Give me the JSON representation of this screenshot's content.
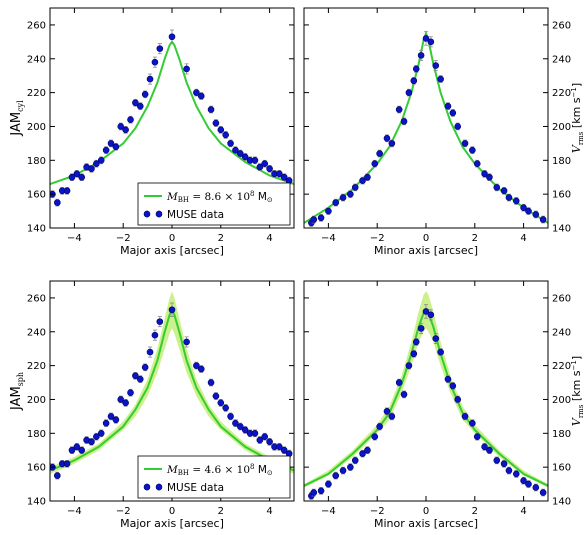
{
  "colors": {
    "model": "#33cc33",
    "model_band": "#c6ef7f",
    "data": "#0a14c8",
    "data_edge": "#000066",
    "errorbar": "#888888",
    "frame": "#000000"
  },
  "chart_data": [
    {
      "type": "line",
      "row_label": "JAM",
      "row_label_sub": "cyl",
      "xlabel": "Major axis [arcsec]",
      "ylabel": "",
      "xlim": [
        -5,
        5
      ],
      "ylim": [
        140,
        270
      ],
      "xticks": [
        -4,
        -2,
        0,
        2,
        4
      ],
      "yticks": [
        140,
        160,
        180,
        200,
        220,
        240,
        260
      ],
      "y_ticks_side": "left",
      "grid": false,
      "legend": {
        "placement": "lower-right",
        "model_label": "M_BH = 8.6 × 10^8 M☉",
        "model_math": "M",
        "model_math_sub": "BH",
        "model_eq": " = 8.6 × 10",
        "model_exp": "8",
        "model_unit": " M",
        "model_sun": "⊙",
        "data_label": "MUSE data"
      },
      "band": null,
      "series": [
        {
          "name": "MUSE data",
          "kind": "errorbar-scatter",
          "x": [
            -4.9,
            -4.7,
            -4.5,
            -4.3,
            -4.1,
            -3.9,
            -3.7,
            -3.5,
            -3.3,
            -3.1,
            -2.9,
            -2.7,
            -2.5,
            -2.3,
            -2.1,
            -1.9,
            -1.7,
            -1.5,
            -1.3,
            -1.1,
            -0.9,
            -0.7,
            -0.5,
            0.0,
            0.6,
            1.0,
            1.2,
            1.6,
            1.8,
            2.0,
            2.2,
            2.4,
            2.6,
            2.8,
            3.0,
            3.2,
            3.4,
            3.6,
            3.8,
            4.0,
            4.2,
            4.4,
            4.6,
            4.8
          ],
          "y": [
            160,
            155,
            162,
            162,
            170,
            172,
            170,
            176,
            175,
            178,
            180,
            186,
            190,
            188,
            200,
            198,
            204,
            214,
            212,
            219,
            228,
            238,
            246,
            253,
            234,
            220,
            218,
            210,
            202,
            198,
            195,
            190,
            186,
            184,
            182,
            180,
            180,
            176,
            178,
            175,
            172,
            172,
            170,
            168
          ],
          "yerr": [
            2,
            2,
            2,
            2,
            2,
            2,
            2,
            2,
            2,
            2,
            2,
            2,
            2,
            2,
            2,
            2,
            2,
            2,
            2,
            2,
            3,
            3,
            3,
            4,
            3,
            2,
            2,
            2,
            2,
            2,
            2,
            2,
            2,
            2,
            2,
            2,
            2,
            2,
            2,
            2,
            2,
            2,
            2,
            2
          ]
        },
        {
          "name": "M_BH = 8.6 × 10^8 M☉",
          "kind": "line",
          "x": [
            -5,
            -4,
            -3,
            -2,
            -1.5,
            -1,
            -0.6,
            -0.3,
            -0.1,
            0,
            0.1,
            0.3,
            0.6,
            1,
            1.5,
            2,
            3,
            4,
            5
          ],
          "y": [
            166,
            171,
            179,
            190,
            199,
            212,
            226,
            240,
            248,
            250,
            248,
            240,
            226,
            212,
            199,
            190,
            179,
            171,
            166
          ]
        }
      ]
    },
    {
      "type": "line",
      "row_label": "",
      "row_label_sub": "",
      "xlabel": "Minor axis [arcsec]",
      "ylabel": "V_rms [km s^-1]",
      "ylabel_v": "V",
      "ylabel_sub": "rms",
      "ylabel_unit": " [km s",
      "ylabel_exp": "−1",
      "ylabel_close": "]",
      "xlim": [
        -5,
        5
      ],
      "ylim": [
        140,
        270
      ],
      "xticks": [
        -4,
        -2,
        0,
        2,
        4
      ],
      "yticks": [
        140,
        160,
        180,
        200,
        220,
        240,
        260
      ],
      "y_ticks_side": "right",
      "grid": false,
      "legend": null,
      "band": null,
      "series": [
        {
          "name": "MUSE data",
          "kind": "errorbar-scatter",
          "x": [
            -4.7,
            -4.6,
            -4.3,
            -4.0,
            -3.7,
            -3.4,
            -3.1,
            -2.9,
            -2.6,
            -2.4,
            -2.1,
            -1.9,
            -1.6,
            -1.4,
            -1.1,
            -0.9,
            -0.7,
            -0.5,
            -0.4,
            -0.2,
            0.0,
            0.2,
            0.4,
            0.6,
            0.9,
            1.1,
            1.3,
            1.6,
            1.9,
            2.1,
            2.4,
            2.6,
            2.9,
            3.2,
            3.4,
            3.7,
            4.0,
            4.2,
            4.5,
            4.8
          ],
          "y": [
            143,
            145,
            146,
            150,
            155,
            158,
            160,
            164,
            168,
            170,
            178,
            184,
            193,
            190,
            210,
            203,
            220,
            227,
            234,
            242,
            252,
            250,
            236,
            228,
            212,
            208,
            200,
            190,
            186,
            178,
            172,
            170,
            164,
            162,
            158,
            156,
            152,
            150,
            148,
            145
          ],
          "yerr": [
            2,
            2,
            2,
            2,
            2,
            2,
            2,
            2,
            2,
            2,
            2,
            2,
            2,
            2,
            2,
            2,
            2,
            2,
            2,
            3,
            4,
            3,
            3,
            2,
            2,
            2,
            2,
            2,
            2,
            2,
            2,
            2,
            2,
            2,
            2,
            2,
            2,
            2,
            2,
            2
          ]
        },
        {
          "name": "M_BH = 8.6 × 10^8 M☉",
          "kind": "line",
          "x": [
            -5,
            -4,
            -3,
            -2,
            -1.5,
            -1,
            -0.6,
            -0.3,
            -0.1,
            0,
            0.1,
            0.3,
            0.6,
            1,
            1.5,
            2,
            3,
            4,
            5
          ],
          "y": [
            143,
            152,
            163,
            178,
            188,
            203,
            220,
            237,
            251,
            255,
            251,
            237,
            220,
            203,
            188,
            178,
            163,
            152,
            143
          ]
        }
      ]
    },
    {
      "type": "line",
      "row_label": "JAM",
      "row_label_sub": "sph",
      "xlabel": "Major axis [arcsec]",
      "ylabel": "",
      "xlim": [
        -5,
        5
      ],
      "ylim": [
        140,
        270
      ],
      "xticks": [
        -4,
        -2,
        0,
        2,
        4
      ],
      "yticks": [
        140,
        160,
        180,
        200,
        220,
        240,
        260
      ],
      "y_ticks_side": "left",
      "grid": false,
      "legend": {
        "placement": "lower-right",
        "model_label": "M_BH = 4.6 × 10^8 M☉",
        "model_math": "M",
        "model_math_sub": "BH",
        "model_eq": " = 4.6 × 10",
        "model_exp": "8",
        "model_unit": " M",
        "model_sun": "⊙",
        "data_label": "MUSE data"
      },
      "band": {
        "x": [
          -5,
          -4,
          -3,
          -2,
          -1.5,
          -1,
          -0.6,
          -0.3,
          -0.1,
          0,
          0.1,
          0.3,
          0.6,
          1,
          1.5,
          2,
          3,
          4,
          5
        ],
        "upper": [
          160,
          166,
          174,
          187,
          197,
          212,
          230,
          248,
          260,
          264,
          260,
          248,
          230,
          212,
          197,
          187,
          174,
          166,
          160
        ],
        "lower": [
          156,
          162,
          170,
          182,
          190,
          202,
          216,
          230,
          239,
          242,
          239,
          230,
          216,
          202,
          190,
          182,
          170,
          162,
          156
        ]
      },
      "series": [
        {
          "name": "MUSE data",
          "kind": "errorbar-scatter",
          "x": [
            -4.9,
            -4.7,
            -4.5,
            -4.3,
            -4.1,
            -3.9,
            -3.7,
            -3.5,
            -3.3,
            -3.1,
            -2.9,
            -2.7,
            -2.5,
            -2.3,
            -2.1,
            -1.9,
            -1.7,
            -1.5,
            -1.3,
            -1.1,
            -0.9,
            -0.7,
            -0.5,
            0.0,
            0.6,
            1.0,
            1.2,
            1.6,
            1.8,
            2.0,
            2.2,
            2.4,
            2.6,
            2.8,
            3.0,
            3.2,
            3.4,
            3.6,
            3.8,
            4.0,
            4.2,
            4.4,
            4.6,
            4.8
          ],
          "y": [
            160,
            155,
            162,
            162,
            170,
            172,
            170,
            176,
            175,
            178,
            180,
            186,
            190,
            188,
            200,
            198,
            204,
            214,
            212,
            219,
            228,
            238,
            246,
            253,
            234,
            220,
            218,
            210,
            202,
            198,
            195,
            190,
            186,
            184,
            182,
            180,
            180,
            176,
            178,
            175,
            172,
            172,
            170,
            168
          ],
          "yerr": [
            2,
            2,
            2,
            2,
            2,
            2,
            2,
            2,
            2,
            2,
            2,
            2,
            2,
            2,
            2,
            2,
            2,
            2,
            2,
            2,
            3,
            3,
            3,
            4,
            3,
            2,
            2,
            2,
            2,
            2,
            2,
            2,
            2,
            2,
            2,
            2,
            2,
            2,
            2,
            2,
            2,
            2,
            2,
            2
          ]
        },
        {
          "name": "M_BH = 4.6 × 10^8 M☉",
          "kind": "line",
          "x": [
            -5,
            -4,
            -3,
            -2,
            -1.5,
            -1,
            -0.6,
            -0.3,
            -0.1,
            0,
            0.1,
            0.3,
            0.6,
            1,
            1.5,
            2,
            3,
            4,
            5
          ],
          "y": [
            158,
            164,
            172,
            184,
            194,
            207,
            223,
            240,
            250,
            253,
            250,
            240,
            223,
            207,
            194,
            184,
            172,
            164,
            158
          ]
        }
      ]
    },
    {
      "type": "line",
      "row_label": "",
      "row_label_sub": "",
      "xlabel": "Minor axis [arcsec]",
      "ylabel": "V_rms [km s^-1]",
      "ylabel_v": "V",
      "ylabel_sub": "rms",
      "ylabel_unit": " [km s",
      "ylabel_exp": "−1",
      "ylabel_close": "]",
      "xlim": [
        -5,
        5
      ],
      "ylim": [
        140,
        270
      ],
      "xticks": [
        -4,
        -2,
        0,
        2,
        4
      ],
      "yticks": [
        140,
        160,
        180,
        200,
        220,
        240,
        260
      ],
      "y_ticks_side": "right",
      "grid": false,
      "legend": null,
      "band": {
        "x": [
          -5,
          -4,
          -3,
          -2,
          -1.5,
          -1,
          -0.6,
          -0.3,
          -0.1,
          0,
          0.1,
          0.3,
          0.6,
          1,
          1.5,
          2,
          3,
          4,
          5
        ],
        "upper": [
          150,
          158,
          170,
          185,
          196,
          214,
          234,
          252,
          262,
          264,
          262,
          252,
          234,
          214,
          196,
          185,
          170,
          158,
          150
        ],
        "lower": [
          148,
          155,
          166,
          180,
          188,
          204,
          220,
          234,
          240,
          242,
          240,
          234,
          220,
          204,
          188,
          180,
          166,
          155,
          148
        ]
      },
      "series": [
        {
          "name": "MUSE data",
          "kind": "errorbar-scatter",
          "x": [
            -4.7,
            -4.6,
            -4.3,
            -4.0,
            -3.7,
            -3.4,
            -3.1,
            -2.9,
            -2.6,
            -2.4,
            -2.1,
            -1.9,
            -1.6,
            -1.4,
            -1.1,
            -0.9,
            -0.7,
            -0.5,
            -0.4,
            -0.2,
            0.0,
            0.2,
            0.4,
            0.6,
            0.9,
            1.1,
            1.3,
            1.6,
            1.9,
            2.1,
            2.4,
            2.6,
            2.9,
            3.2,
            3.4,
            3.7,
            4.0,
            4.2,
            4.5,
            4.8
          ],
          "y": [
            143,
            145,
            146,
            150,
            155,
            158,
            160,
            164,
            168,
            170,
            178,
            184,
            193,
            190,
            210,
            203,
            220,
            227,
            234,
            242,
            252,
            250,
            236,
            228,
            212,
            208,
            200,
            190,
            186,
            178,
            172,
            170,
            164,
            162,
            158,
            156,
            152,
            150,
            148,
            145
          ],
          "yerr": [
            2,
            2,
            2,
            2,
            2,
            2,
            2,
            2,
            2,
            2,
            2,
            2,
            2,
            2,
            2,
            2,
            2,
            2,
            2,
            3,
            4,
            3,
            3,
            2,
            2,
            2,
            2,
            2,
            2,
            2,
            2,
            2,
            2,
            2,
            2,
            2,
            2,
            2,
            2,
            2
          ]
        },
        {
          "name": "M_BH = 4.6 × 10^8 M☉",
          "kind": "line",
          "x": [
            -5,
            -4,
            -3,
            -2,
            -1.5,
            -1,
            -0.6,
            -0.3,
            -0.1,
            0,
            0.1,
            0.3,
            0.6,
            1,
            1.5,
            2,
            3,
            4,
            5
          ],
          "y": [
            149,
            156,
            168,
            182,
            192,
            209,
            227,
            243,
            251,
            253,
            251,
            243,
            227,
            209,
            192,
            182,
            168,
            156,
            149
          ]
        }
      ]
    }
  ]
}
